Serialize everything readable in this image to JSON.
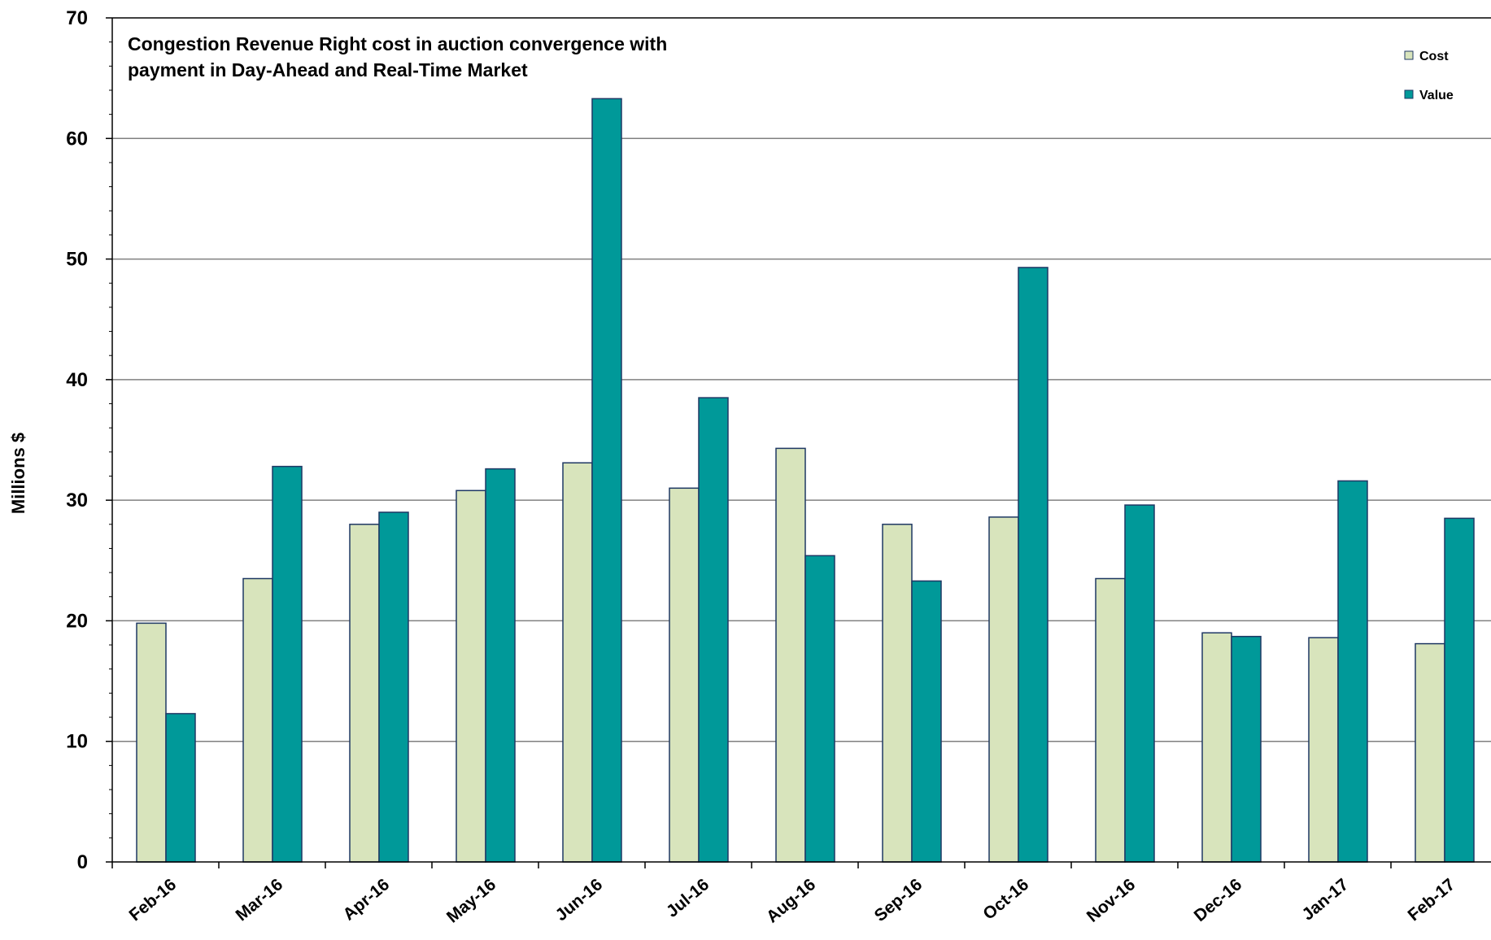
{
  "chart_data": {
    "type": "bar",
    "title": [
      "Congestion Revenue Right cost in auction convergence with",
      "payment in Day-Ahead and Real-Time Market"
    ],
    "ylabel": "Millions $",
    "xlabel": "",
    "ylim": [
      0,
      70
    ],
    "yticks": [
      "0",
      "10",
      "20",
      "30",
      "40",
      "50",
      "60",
      "70"
    ],
    "grid": true,
    "legend_position": "top-right",
    "categories": [
      "Feb-16",
      "Mar-16",
      "Apr-16",
      "May-16",
      "Jun-16",
      "Jul-16",
      "Aug-16",
      "Sep-16",
      "Oct-16",
      "Nov-16",
      "Dec-16",
      "Jan-17",
      "Feb-17"
    ],
    "series": [
      {
        "name": "Cost",
        "color": "#d8e4bc",
        "values": [
          19.8,
          23.5,
          28.0,
          30.8,
          33.1,
          31.0,
          34.3,
          28.0,
          28.6,
          23.5,
          19.0,
          18.6,
          18.1
        ]
      },
      {
        "name": "Value",
        "color": "#009999",
        "values": [
          12.3,
          32.8,
          29.0,
          32.6,
          63.3,
          38.5,
          25.4,
          23.3,
          49.3,
          29.6,
          18.7,
          31.6,
          28.5
        ]
      }
    ]
  },
  "colors": {
    "bar_stroke": "#1f3864",
    "gridline": "#808080",
    "axis": "#000000"
  }
}
